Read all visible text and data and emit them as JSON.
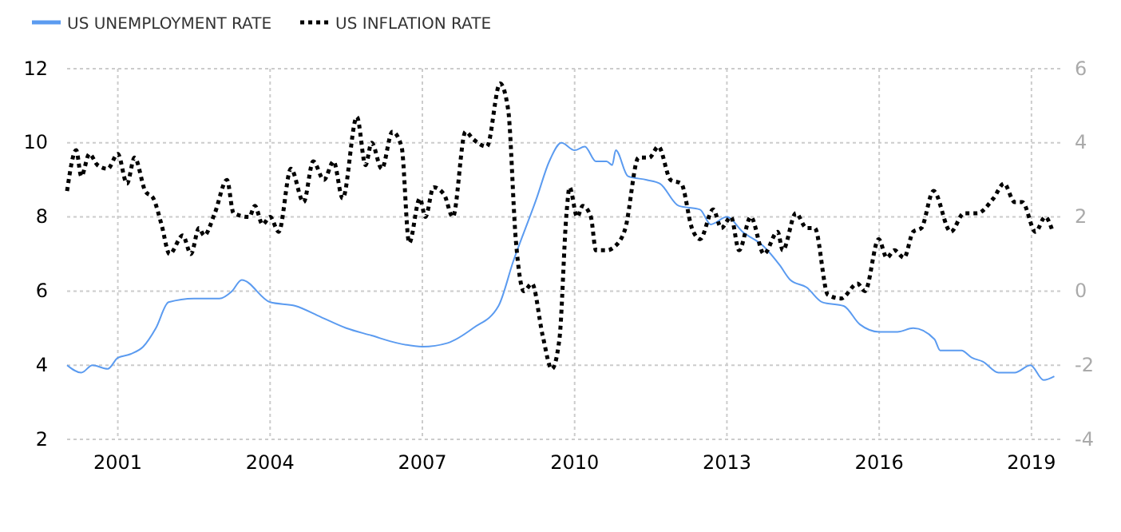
{
  "chart_data": {
    "type": "line",
    "xlim": [
      2000,
      2019.6
    ],
    "xticks": [
      2001,
      2004,
      2007,
      2010,
      2013,
      2016,
      2019
    ],
    "ylim": [
      2,
      12
    ],
    "yticks": [
      2,
      4,
      6,
      8,
      10,
      12
    ],
    "y2lim": [
      -4,
      6
    ],
    "y2ticks": [
      -4,
      -2,
      0,
      2,
      4,
      6
    ],
    "grid": true,
    "legend": "top left",
    "series": [
      {
        "name": "US UNEMPLOYMENT RATE",
        "color": "#5b9bf0",
        "line_style": "solid",
        "x": [
          2000.0,
          2000.28,
          2000.5,
          2000.8,
          2001.0,
          2001.25,
          2001.5,
          2001.75,
          2002.0,
          2002.5,
          2003.0,
          2003.25,
          2003.44,
          2004.0,
          2004.5,
          2005.0,
          2005.5,
          2006.0,
          2006.5,
          2007.0,
          2007.5,
          2008.0,
          2008.5,
          2008.79,
          2009.25,
          2009.5,
          2009.74,
          2010.0,
          2010.2,
          2010.42,
          2010.63,
          2010.74,
          2010.81,
          2011.05,
          2011.42,
          2011.68,
          2012.05,
          2012.47,
          2012.68,
          2013.0,
          2013.31,
          2013.73,
          2014.04,
          2014.25,
          2014.57,
          2014.88,
          2015.3,
          2015.62,
          2016.0,
          2016.36,
          2016.67,
          2017.09,
          2017.2,
          2017.62,
          2017.83,
          2018.04,
          2018.35,
          2018.67,
          2018.98,
          2019.24,
          2019.45
        ],
        "values": [
          4.0,
          3.8,
          4.0,
          3.9,
          4.2,
          4.3,
          4.5,
          5.0,
          5.7,
          5.8,
          5.8,
          6.0,
          6.3,
          5.7,
          5.6,
          5.3,
          5.0,
          4.8,
          4.6,
          4.5,
          4.6,
          5.0,
          5.6,
          6.8,
          8.5,
          9.5,
          10.0,
          9.8,
          9.9,
          9.5,
          9.5,
          9.4,
          9.8,
          9.1,
          9.0,
          8.9,
          8.3,
          8.2,
          7.8,
          8.0,
          7.6,
          7.2,
          6.7,
          6.3,
          6.1,
          5.7,
          5.6,
          5.1,
          4.9,
          4.9,
          5.0,
          4.7,
          4.4,
          4.4,
          4.2,
          4.1,
          3.8,
          3.8,
          4.0,
          3.6,
          3.7
        ]
      },
      {
        "name": "US INFLATION RATE",
        "color": "#000000",
        "line_style": "dotted",
        "axis": "y2",
        "x": [
          2000.0,
          2000.18,
          2000.28,
          2000.44,
          2000.6,
          2000.8,
          2001.0,
          2001.18,
          2001.33,
          2001.54,
          2001.7,
          2001.86,
          2002.02,
          2002.28,
          2002.44,
          2002.6,
          2002.7,
          2002.91,
          2003.15,
          2003.28,
          2003.59,
          2003.7,
          2003.85,
          2004.0,
          2004.17,
          2004.41,
          2004.66,
          2004.85,
          2005.06,
          2005.25,
          2005.43,
          2005.71,
          2005.88,
          2006.0,
          2006.2,
          2006.41,
          2006.59,
          2006.74,
          2006.95,
          2007.06,
          2007.22,
          2007.43,
          2007.6,
          2007.85,
          2008.0,
          2008.27,
          2008.53,
          2008.69,
          2008.84,
          2009.0,
          2009.16,
          2009.37,
          2009.55,
          2009.7,
          2009.84,
          2009.9,
          2010.05,
          2010.16,
          2010.32,
          2010.42,
          2010.63,
          2010.79,
          2011.0,
          2011.26,
          2011.47,
          2011.65,
          2011.89,
          2012.1,
          2012.31,
          2012.47,
          2012.73,
          2012.89,
          2013.08,
          2013.24,
          2013.47,
          2013.73,
          2014.0,
          2014.1,
          2014.36,
          2014.57,
          2014.73,
          2014.99,
          2015.25,
          2015.57,
          2015.72,
          2015.99,
          2016.15,
          2016.3,
          2016.49,
          2016.67,
          2016.83,
          2017.07,
          2017.41,
          2017.67,
          2017.93,
          2018.25,
          2018.46,
          2018.67,
          2018.82,
          2019.08,
          2019.27,
          2019.42
        ],
        "values": [
          2.7,
          3.8,
          3.1,
          3.7,
          3.4,
          3.3,
          3.7,
          2.9,
          3.6,
          2.7,
          2.5,
          1.8,
          1.0,
          1.5,
          1.0,
          1.7,
          1.5,
          2.1,
          3.0,
          2.1,
          2.0,
          2.3,
          1.8,
          2.0,
          1.6,
          3.3,
          2.4,
          3.5,
          3.0,
          3.5,
          2.5,
          4.7,
          3.4,
          4.0,
          3.3,
          4.3,
          3.9,
          1.3,
          2.5,
          2.0,
          2.8,
          2.6,
          2.0,
          4.3,
          4.1,
          3.9,
          5.6,
          4.9,
          1.4,
          0.0,
          0.2,
          -1.2,
          -2.1,
          -1.3,
          2.1,
          2.8,
          2.0,
          2.3,
          2.0,
          1.1,
          1.1,
          1.2,
          1.7,
          3.6,
          3.6,
          3.9,
          3.0,
          2.9,
          1.7,
          1.4,
          2.2,
          1.7,
          2.0,
          1.1,
          2.0,
          1.0,
          1.6,
          1.1,
          2.1,
          1.7,
          1.7,
          -0.1,
          -0.2,
          0.2,
          0.0,
          1.4,
          0.9,
          1.1,
          0.9,
          1.6,
          1.7,
          2.7,
          1.6,
          2.1,
          2.1,
          2.5,
          2.9,
          2.4,
          2.4,
          1.6,
          2.0,
          1.6
        ]
      }
    ]
  }
}
